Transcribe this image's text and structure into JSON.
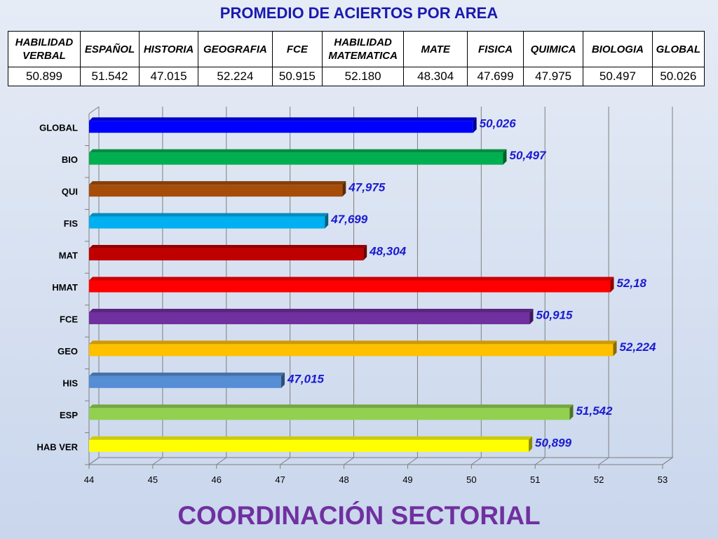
{
  "header": {
    "title": "PROMEDIO DE ACIERTOS POR AREA"
  },
  "table": {
    "headers": [
      "HABILIDAD VERBAL",
      "ESPAÑOL",
      "HISTORIA",
      "GEOGRAFIA",
      "FCE",
      "HABILIDAD MATEMATICA",
      "MATE",
      "FISICA",
      "QUIMICA",
      "BIOLOGIA",
      "GLOBAL"
    ],
    "values": [
      "50.899",
      "51.542",
      "47.015",
      "52.224",
      "50.915",
      "52.180",
      "48.304",
      "47.699",
      "47.975",
      "50.497",
      "50.026"
    ]
  },
  "chart_data": {
    "type": "bar",
    "orientation": "horizontal",
    "categories": [
      "HAB VER",
      "ESP",
      "HIS",
      "GEO",
      "FCE",
      "HMAT",
      "MAT",
      "FIS",
      "QUI",
      "BIO",
      "GLOBAL"
    ],
    "values": [
      50.899,
      51.542,
      47.015,
      52.224,
      50.915,
      52.18,
      48.304,
      47.699,
      47.975,
      50.497,
      50.026
    ],
    "data_labels": [
      "50,899",
      "51,542",
      "47,015",
      "52,224",
      "50,915",
      "52,18",
      "48,304",
      "47,699",
      "47,975",
      "50,497",
      "50,026"
    ],
    "colors": [
      "#ffff00",
      "#92d050",
      "#558ed5",
      "#ffc000",
      "#7030a0",
      "#ff0000",
      "#c00000",
      "#00b0f0",
      "#a64d0a",
      "#00b050",
      "#0000ff"
    ],
    "xlim": [
      44,
      53
    ],
    "xticks": [
      "44",
      "45",
      "46",
      "47",
      "48",
      "49",
      "50",
      "51",
      "52",
      "53"
    ],
    "grid": true,
    "label_color": "#1a1ad0"
  },
  "footer": {
    "text": "COORDINACIÓN SECTORIAL"
  }
}
